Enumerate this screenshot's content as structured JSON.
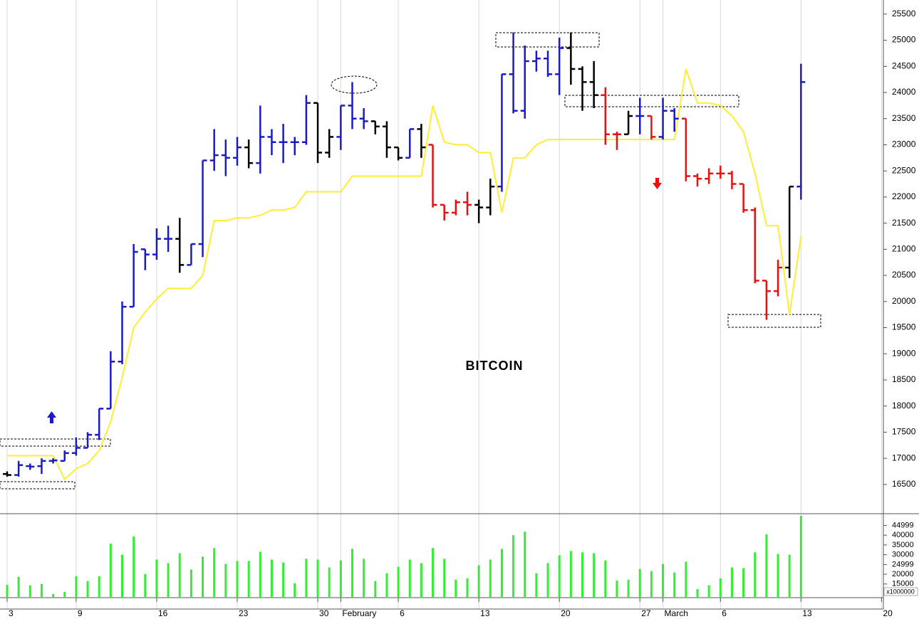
{
  "chart_data": {
    "type": "ohlc",
    "title": "BITCOIN",
    "categories": [
      "3",
      null,
      null,
      null,
      null,
      null,
      "9",
      null,
      null,
      null,
      null,
      null,
      null,
      "16",
      null,
      null,
      null,
      null,
      null,
      null,
      "23",
      null,
      null,
      null,
      null,
      null,
      null,
      "30",
      null,
      "February",
      null,
      null,
      null,
      null,
      "6",
      null,
      null,
      null,
      null,
      null,
      null,
      "13",
      null,
      null,
      null,
      null,
      null,
      null,
      "20",
      null,
      null,
      null,
      null,
      null,
      null,
      "27",
      null,
      "March",
      null,
      null,
      null,
      null,
      "6",
      null,
      null,
      null,
      null,
      null,
      null,
      "13",
      null,
      null,
      null,
      null,
      null,
      null,
      "20"
    ],
    "series": [
      {
        "open": [
          16700,
          16680,
          16850,
          16850,
          16950,
          16950,
          17100,
          17200,
          17450,
          17950,
          18850,
          19900,
          21000,
          20900,
          21200,
          21200,
          20700,
          21100,
          22700,
          22800,
          22750,
          22950,
          22650,
          23150,
          23050,
          23050,
          23050,
          23800,
          22850,
          23150,
          23750,
          23500,
          23450,
          23350,
          22950,
          22750,
          23300,
          23000,
          21850,
          21700,
          21900,
          21850,
          21800,
          22200,
          24350,
          23650,
          24600,
          24650,
          24350,
          24850,
          24450,
          24200,
          23950,
          23200,
          23200,
          23550,
          23550,
          23150,
          23650,
          23500,
          22400,
          22350,
          22450,
          22450,
          22250,
          21750,
          20400,
          20200,
          20650,
          22200,
          null,
          null,
          null,
          null,
          null,
          null,
          null
        ],
        "high": [
          16750,
          16950,
          16900,
          17000,
          17000,
          17150,
          17400,
          17500,
          17950,
          19050,
          20000,
          21100,
          21000,
          21400,
          21450,
          21600,
          21100,
          22700,
          23300,
          23100,
          23150,
          23100,
          23750,
          23300,
          23400,
          23150,
          23950,
          23800,
          23300,
          23750,
          24200,
          23700,
          23450,
          23450,
          22950,
          23300,
          23400,
          23000,
          21850,
          21950,
          22100,
          21950,
          22350,
          24350,
          25150,
          24900,
          24800,
          24800,
          25050,
          25150,
          24500,
          24600,
          24100,
          23250,
          23650,
          23900,
          23550,
          23900,
          23700,
          23500,
          22450,
          22550,
          22600,
          22500,
          22250,
          21800,
          20400,
          20800,
          22200,
          24550,
          null,
          null,
          null,
          null,
          null,
          null,
          null
        ],
        "low": [
          16650,
          16650,
          16780,
          16700,
          16900,
          16950,
          17050,
          17200,
          17350,
          17950,
          18800,
          19900,
          20600,
          20800,
          20950,
          20550,
          20700,
          20850,
          22500,
          22400,
          22600,
          22550,
          22450,
          22800,
          22650,
          22800,
          23000,
          22650,
          22750,
          22900,
          23300,
          23300,
          23200,
          22750,
          22700,
          22750,
          22750,
          21800,
          21550,
          21650,
          21650,
          21500,
          21650,
          22100,
          23600,
          23500,
          24400,
          24300,
          23950,
          24150,
          23650,
          23700,
          23000,
          22900,
          23200,
          23200,
          23100,
          23100,
          23250,
          22300,
          22200,
          22250,
          22350,
          22150,
          21700,
          20350,
          19650,
          20100,
          20450,
          21950,
          null,
          null,
          null,
          null,
          null,
          null,
          null
        ],
        "close": [
          16680,
          16870,
          16840,
          16950,
          16960,
          17100,
          17200,
          17450,
          17950,
          18850,
          19900,
          20950,
          20900,
          21200,
          21200,
          20700,
          21100,
          22700,
          22800,
          22750,
          22950,
          22650,
          23150,
          23050,
          23050,
          23050,
          23800,
          22850,
          23150,
          23750,
          23500,
          23450,
          23350,
          22950,
          22750,
          23300,
          22950,
          21850,
          21700,
          21900,
          21850,
          21800,
          22200,
          24350,
          23650,
          24600,
          24650,
          24350,
          24850,
          24450,
          24200,
          23950,
          23200,
          23200,
          23550,
          23550,
          23150,
          23650,
          23500,
          22400,
          22350,
          22450,
          22450,
          22250,
          21750,
          20400,
          20200,
          20650,
          22200,
          24200,
          null,
          null,
          null,
          null,
          null,
          null,
          null
        ],
        "colors": [
          "#000000",
          "#1a1ac8",
          "#1a1ac8",
          "#1a1ac8",
          "#1a1ac8",
          "#1a1ac8",
          "#1a1ac8",
          "#1a1ac8",
          "#1a1ac8",
          "#1a1ac8",
          "#1a1ac8",
          "#1a1ac8",
          "#1a1ac8",
          "#1a1ac8",
          "#1a1ac8",
          "#000000",
          "#1a1ac8",
          "#1a1ac8",
          "#1a1ac8",
          "#1a1ac8",
          "#1a1ac8",
          "#000000",
          "#1a1ac8",
          "#1a1ac8",
          "#1a1ac8",
          "#1a1ac8",
          "#1a1ac8",
          "#000000",
          "#000000",
          "#1a1ac8",
          "#1a1ac8",
          "#1a1ac8",
          "#000000",
          "#000000",
          "#000000",
          "#1a1ac8",
          "#000000",
          "#e81010",
          "#e81010",
          "#e81010",
          "#e81010",
          "#000000",
          "#000000",
          "#1a1ac8",
          "#1a1ac8",
          "#1a1ac8",
          "#1a1ac8",
          "#1a1ac8",
          "#1a1ac8",
          "#000000",
          "#000000",
          "#000000",
          "#e81010",
          "#e81010",
          "#000000",
          "#1a1ac8",
          "#e81010",
          "#1a1ac8",
          "#1a1ac8",
          "#e81010",
          "#e81010",
          "#e81010",
          "#e81010",
          "#e81010",
          "#e81010",
          "#e81010",
          "#e81010",
          "#e81010",
          "#000000",
          "#1a1ac8",
          null,
          null,
          null,
          null,
          null,
          null,
          null
        ]
      }
    ],
    "line": {
      "color": "#ffee33",
      "values": [
        17050,
        17050,
        17050,
        17050,
        17050,
        16600,
        16800,
        16900,
        17150,
        17700,
        18550,
        19500,
        19800,
        20050,
        20250,
        20250,
        20250,
        20500,
        21550,
        21550,
        21600,
        21600,
        21650,
        21750,
        21750,
        21800,
        22100,
        22100,
        22100,
        22100,
        22400,
        22400,
        22400,
        22400,
        22400,
        22400,
        22400,
        23750,
        23050,
        23000,
        23000,
        22850,
        22850,
        21700,
        22750,
        22750,
        23000,
        23100,
        23100,
        23100,
        23100,
        23100,
        23100,
        23100,
        23100,
        23100,
        23100,
        23100,
        23100,
        24450,
        23800,
        23800,
        23750,
        23550,
        23250,
        22450,
        21450,
        21450,
        19750,
        21250,
        null,
        null,
        null,
        null,
        null,
        null,
        null
      ]
    },
    "ylim": [
      15940,
      25770
    ],
    "yticks": [
      16500,
      17000,
      17500,
      18000,
      18500,
      19000,
      19500,
      20000,
      20500,
      21000,
      21500,
      22000,
      22500,
      23000,
      23500,
      24000,
      24500,
      25000,
      25500
    ],
    "grid": true,
    "volume": {
      "color": "#33ee33",
      "unit_label": "x1000000",
      "values": [
        14600,
        18700,
        14300,
        15000,
        9900,
        11000,
        19000,
        16500,
        19000,
        35600,
        30000,
        39300,
        20100,
        27500,
        25700,
        30800,
        22400,
        29000,
        33400,
        25300,
        26800,
        26800,
        31500,
        27500,
        26000,
        15400,
        27900,
        27500,
        23500,
        27100,
        33000,
        27900,
        16500,
        20500,
        23800,
        27500,
        25700,
        33400,
        27900,
        17200,
        17900,
        24600,
        27500,
        33000,
        40000,
        41800,
        20500,
        25700,
        29700,
        31900,
        31200,
        30800,
        27100,
        16800,
        17200,
        22700,
        21600,
        25300,
        20900,
        26400,
        12400,
        14300,
        17900,
        23500,
        23100,
        31200,
        40400,
        30400,
        30000,
        49900,
        null,
        null,
        null,
        null,
        null,
        null,
        null
      ],
      "ylim": [
        8000,
        51000
      ],
      "yticks": [
        15000,
        20000,
        24999,
        30000,
        35000,
        40000,
        44999
      ]
    }
  }
}
